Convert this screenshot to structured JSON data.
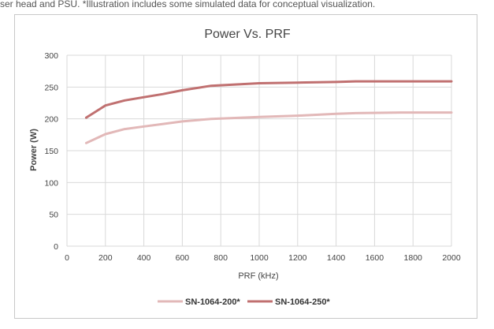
{
  "caption": "ser head and PSU. *Illustration includes some simulated data for conceptual visualization.",
  "chart_data": {
    "type": "line",
    "title": "Power Vs. PRF",
    "xlabel": "PRF (kHz)",
    "ylabel": "Power (W)",
    "xlim": [
      0,
      2000
    ],
    "ylim": [
      0,
      300
    ],
    "xticks": [
      "0",
      "200",
      "400",
      "600",
      "800",
      "1000",
      "1200",
      "1400",
      "1600",
      "1800",
      "2000"
    ],
    "yticks": [
      "0",
      "50",
      "100",
      "150",
      "200",
      "250",
      "300"
    ],
    "grid": true,
    "legend_position": "bottom",
    "series": [
      {
        "name": "SN-1064-200*",
        "color": "#e2b8b8",
        "points": [
          [
            100,
            162
          ],
          [
            200,
            176
          ],
          [
            300,
            184
          ],
          [
            400,
            188
          ],
          [
            500,
            192
          ],
          [
            600,
            196
          ],
          [
            750,
            200
          ],
          [
            1000,
            203
          ],
          [
            1200,
            205
          ],
          [
            1400,
            208
          ],
          [
            1500,
            209
          ],
          [
            1750,
            210
          ],
          [
            2000,
            210
          ]
        ]
      },
      {
        "name": "SN-1064-250*",
        "color": "#c07070",
        "points": [
          [
            100,
            202
          ],
          [
            200,
            221
          ],
          [
            300,
            229
          ],
          [
            400,
            234
          ],
          [
            500,
            239
          ],
          [
            600,
            245
          ],
          [
            750,
            252
          ],
          [
            1000,
            256
          ],
          [
            1200,
            257
          ],
          [
            1400,
            258
          ],
          [
            1500,
            259
          ],
          [
            1750,
            259
          ],
          [
            2000,
            259
          ]
        ]
      }
    ]
  }
}
